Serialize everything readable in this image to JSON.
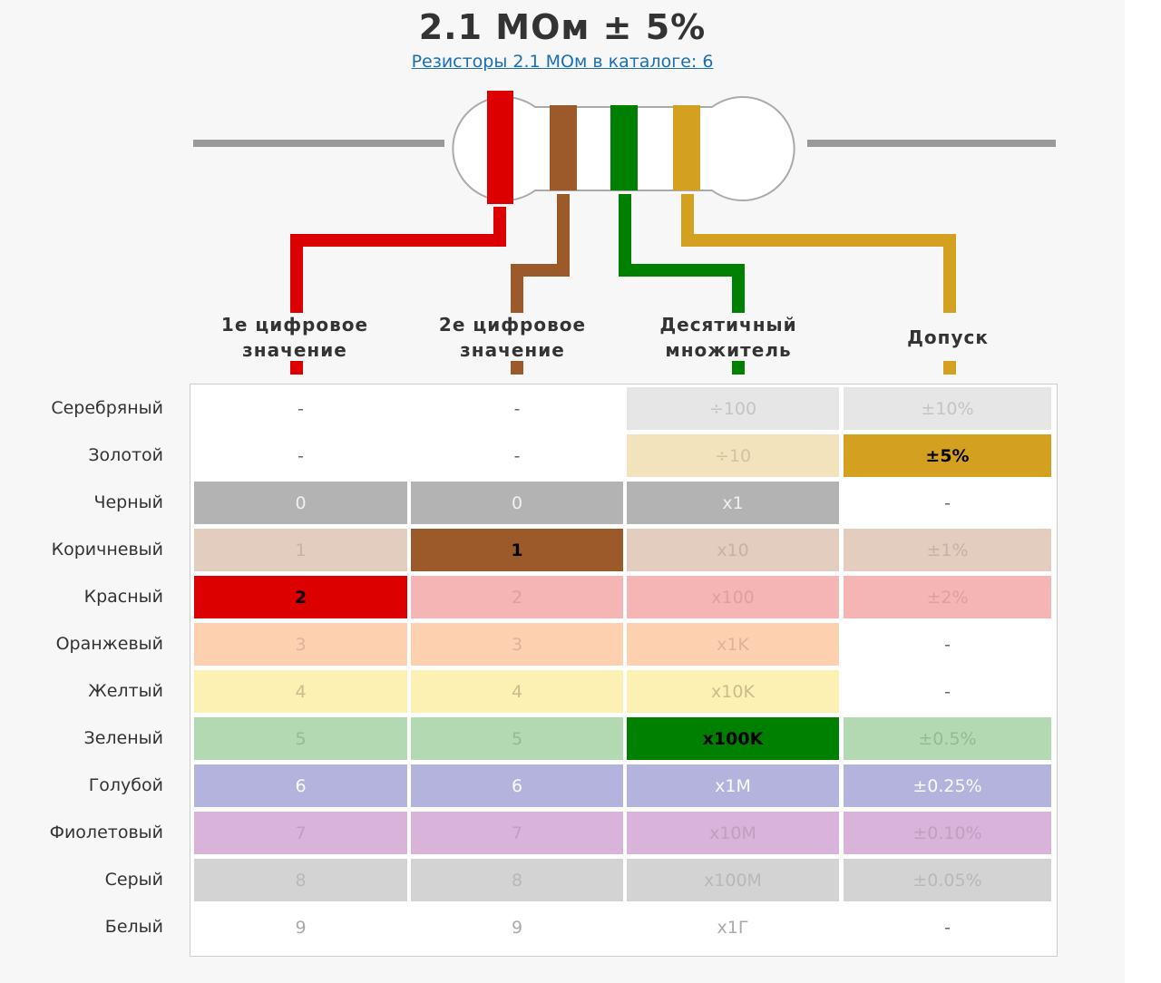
{
  "header": {
    "title": "2.1 МОм ± 5%",
    "link": "Резисторы 2.1 МОм в каталоге: 6"
  },
  "columns": [
    "1е цифровое значение",
    "2е цифровое значение",
    "Десятичный множитель",
    "Допуск"
  ],
  "rows": [
    {
      "name": "Серебряный",
      "cells": [
        "-",
        "-",
        "÷100",
        "±10%"
      ]
    },
    {
      "name": "Золотой",
      "cells": [
        "-",
        "-",
        "÷10",
        "±5%"
      ]
    },
    {
      "name": "Черный",
      "cells": [
        "0",
        "0",
        "x1",
        "-"
      ]
    },
    {
      "name": "Коричневый",
      "cells": [
        "1",
        "1",
        "x10",
        "±1%"
      ]
    },
    {
      "name": "Красный",
      "cells": [
        "2",
        "2",
        "x100",
        "±2%"
      ]
    },
    {
      "name": "Оранжевый",
      "cells": [
        "3",
        "3",
        "x1K",
        "-"
      ]
    },
    {
      "name": "Желтый",
      "cells": [
        "4",
        "4",
        "x10K",
        "-"
      ]
    },
    {
      "name": "Зеленый",
      "cells": [
        "5",
        "5",
        "x100K",
        "±0.5%"
      ]
    },
    {
      "name": "Голубой",
      "cells": [
        "6",
        "6",
        "x1M",
        "±0.25%"
      ]
    },
    {
      "name": "Фиолетовый",
      "cells": [
        "7",
        "7",
        "x10M",
        "±0.10%"
      ]
    },
    {
      "name": "Серый",
      "cells": [
        "8",
        "8",
        "x100M",
        "±0.05%"
      ]
    },
    {
      "name": "Белый",
      "cells": [
        "9",
        "9",
        "x1Г",
        "-"
      ]
    }
  ]
}
